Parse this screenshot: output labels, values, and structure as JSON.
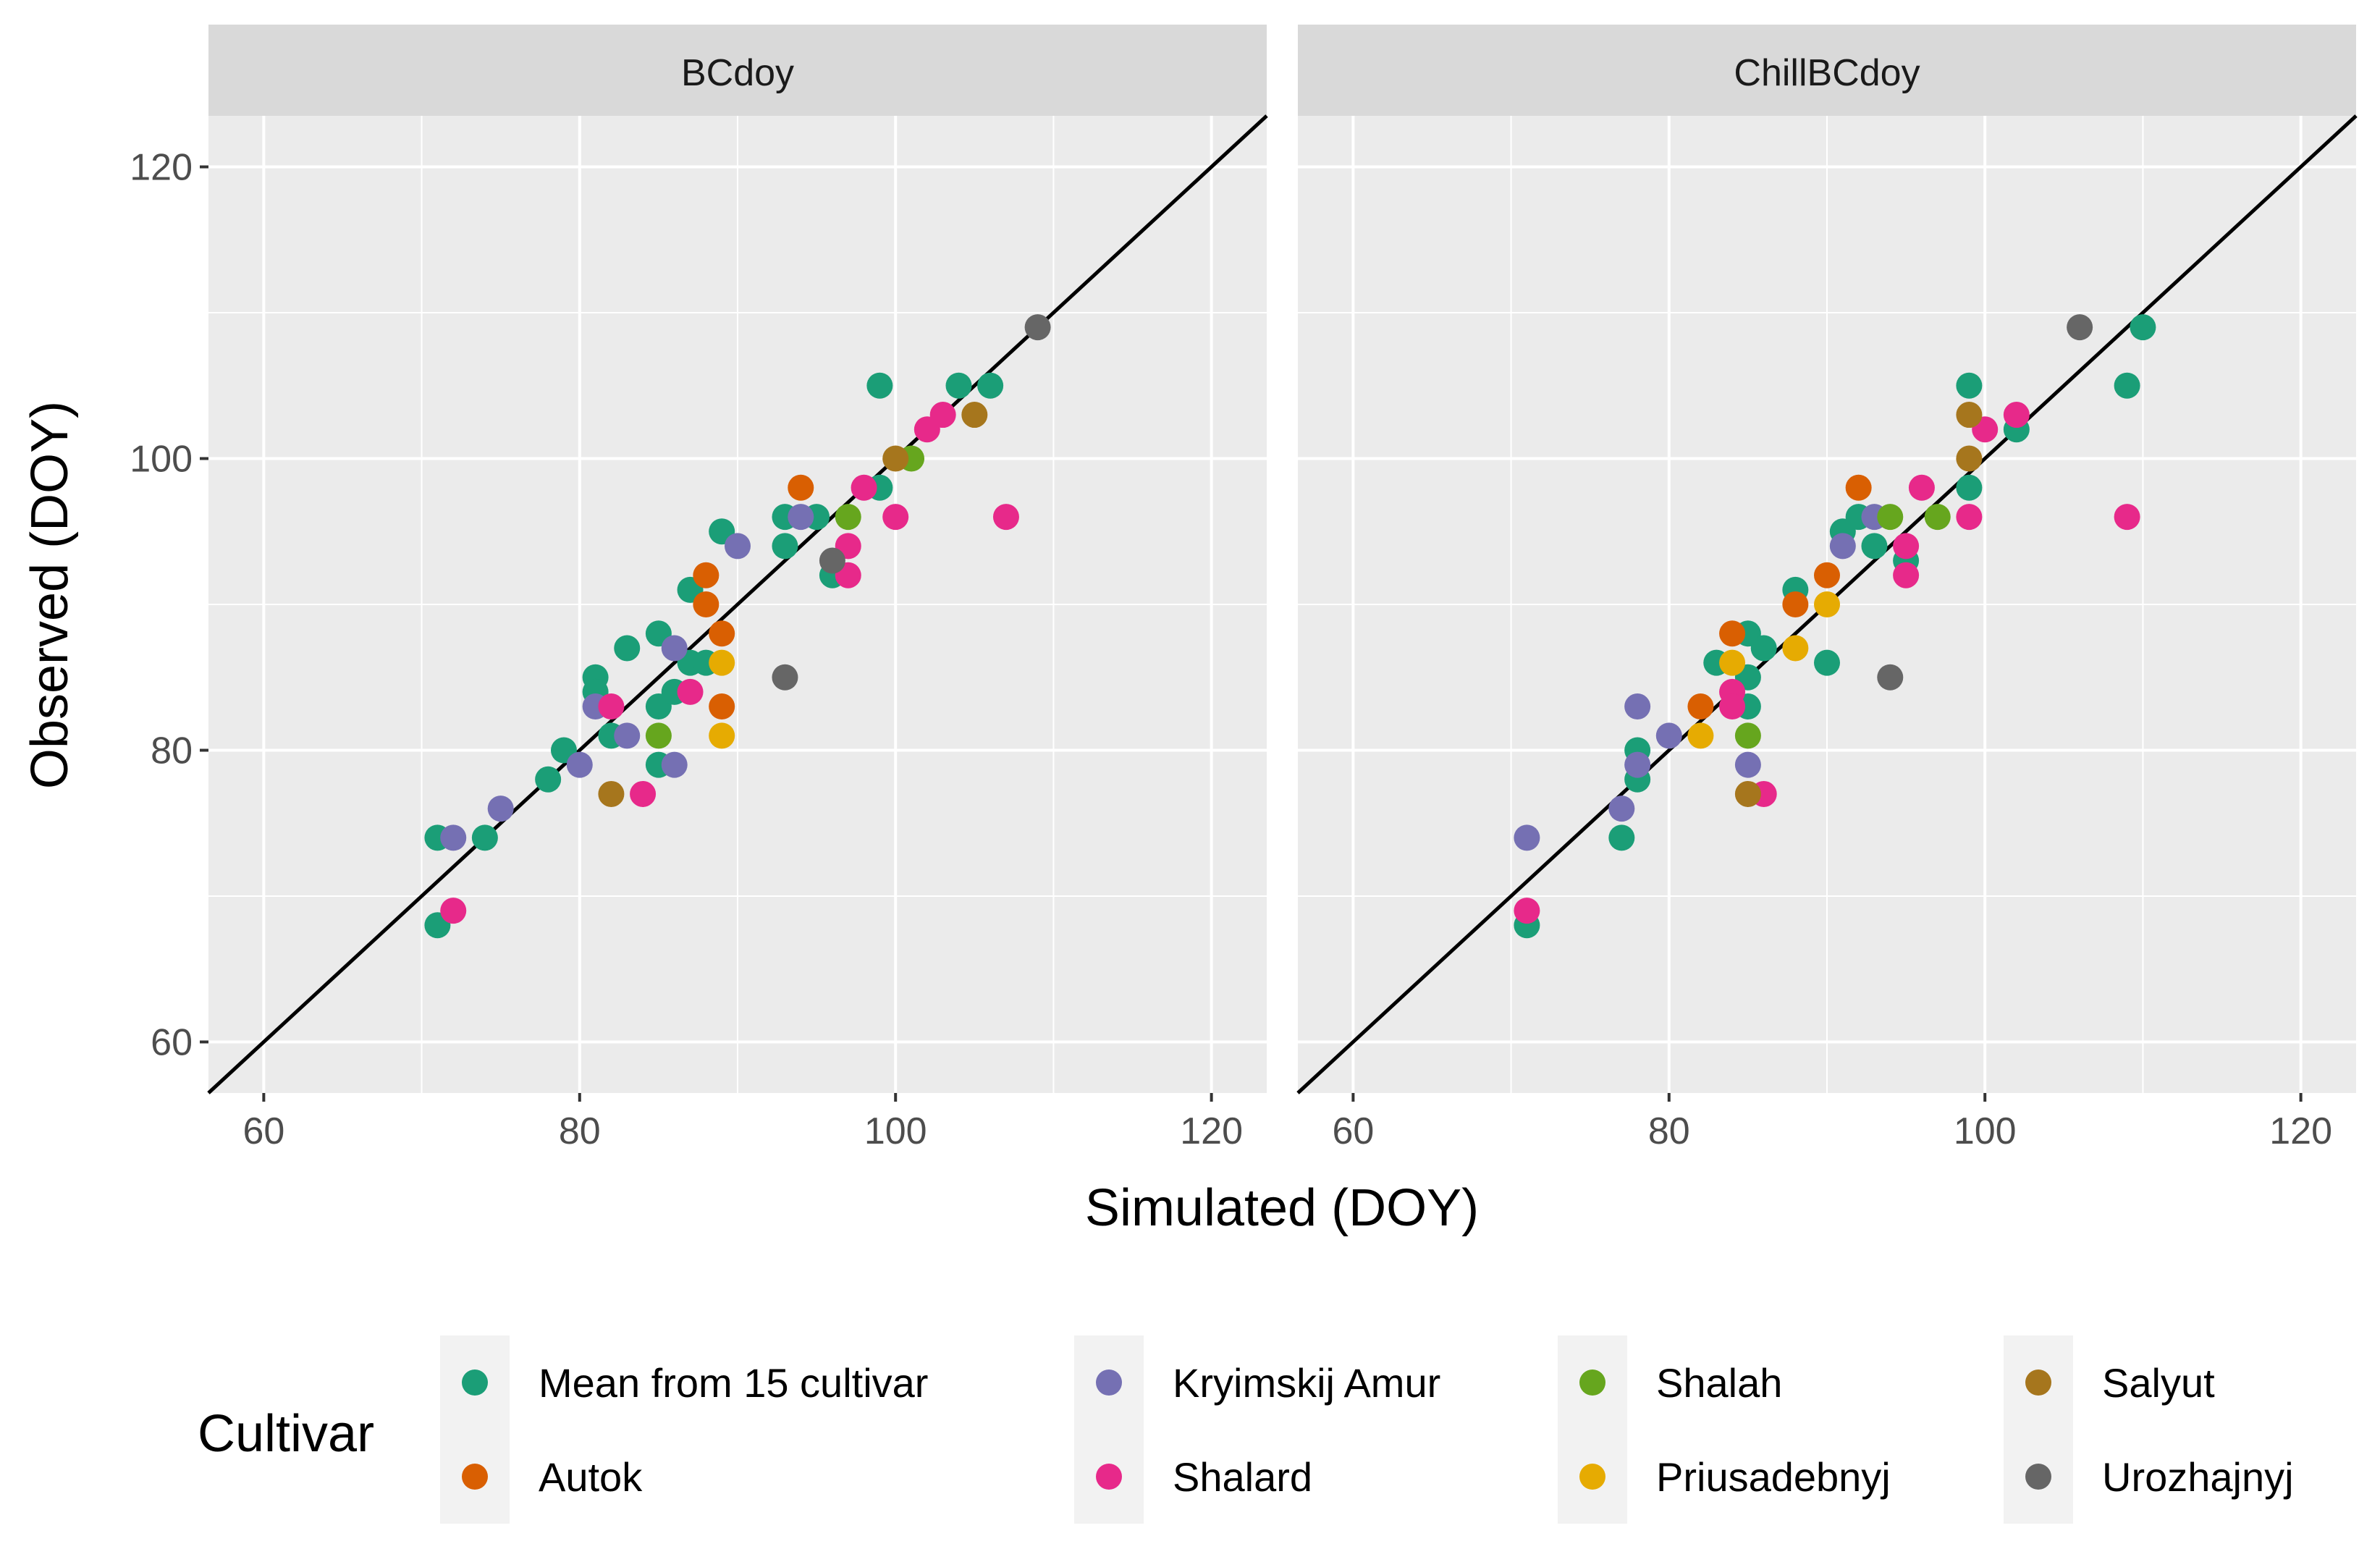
{
  "chart_data": {
    "type": "scatter",
    "xlabel": "Simulated (DOY)",
    "ylabel": "Observed (DOY)",
    "xlim": [
      56.5,
      123.5
    ],
    "ylim": [
      56.5,
      123.5
    ],
    "x_ticks": [
      60,
      80,
      100,
      120
    ],
    "y_ticks": [
      60,
      80,
      100,
      120
    ],
    "grid": true,
    "reference_line": "y = x",
    "legend": {
      "title": "Cultivar",
      "position": "bottom",
      "entries": [
        {
          "name": "Mean from 15 cultivar",
          "color": "#1b9e77"
        },
        {
          "name": "Autok",
          "color": "#d95f02"
        },
        {
          "name": "Kryimskij Amur",
          "color": "#7570b3"
        },
        {
          "name": "Shalard",
          "color": "#e7298a"
        },
        {
          "name": "Shalah",
          "color": "#66a61e"
        },
        {
          "name": "Priusadebnyj",
          "color": "#e6ab02"
        },
        {
          "name": "Salyut",
          "color": "#a6761d"
        },
        {
          "name": "Urozhajnyj",
          "color": "#666666"
        }
      ]
    },
    "panels": [
      {
        "title": "BCdoy",
        "series": [
          {
            "name": "Mean from 15 cultivar",
            "points": [
              [
                71,
                68
              ],
              [
                71,
                74
              ],
              [
                74,
                74
              ],
              [
                78,
                78
              ],
              [
                79,
                80
              ],
              [
                81,
                85
              ],
              [
                81,
                84
              ],
              [
                82,
                81
              ],
              [
                83,
                87
              ],
              [
                85,
                88
              ],
              [
                85,
                83
              ],
              [
                85,
                79
              ],
              [
                86,
                84
              ],
              [
                87,
                91
              ],
              [
                87,
                86
              ],
              [
                88,
                86
              ],
              [
                89,
                95
              ],
              [
                93,
                96
              ],
              [
                93,
                94
              ],
              [
                95,
                96
              ],
              [
                96,
                92
              ],
              [
                99,
                105
              ],
              [
                99,
                98
              ],
              [
                104,
                105
              ],
              [
                106,
                105
              ]
            ]
          },
          {
            "name": "Autok",
            "points": [
              [
                88,
                92
              ],
              [
                88,
                90
              ],
              [
                89,
                88
              ],
              [
                89,
                83
              ],
              [
                94,
                98
              ]
            ]
          },
          {
            "name": "Kryimskij Amur",
            "points": [
              [
                72,
                74
              ],
              [
                75,
                76
              ],
              [
                80,
                79
              ],
              [
                81,
                83
              ],
              [
                83,
                81
              ],
              [
                86,
                87
              ],
              [
                86,
                79
              ],
              [
                90,
                94
              ],
              [
                94,
                96
              ]
            ]
          },
          {
            "name": "Shalard",
            "points": [
              [
                72,
                69
              ],
              [
                82,
                83
              ],
              [
                84,
                77
              ],
              [
                87,
                84
              ],
              [
                97,
                94
              ],
              [
                97,
                92
              ],
              [
                98,
                98
              ],
              [
                100,
                96
              ],
              [
                102,
                102
              ],
              [
                103,
                103
              ],
              [
                107,
                96
              ]
            ]
          },
          {
            "name": "Shalah",
            "points": [
              [
                85,
                81
              ],
              [
                97,
                96
              ],
              [
                101,
                100
              ]
            ]
          },
          {
            "name": "Priusadebnyj",
            "points": [
              [
                89,
                86
              ],
              [
                89,
                81
              ]
            ]
          },
          {
            "name": "Salyut",
            "points": [
              [
                82,
                77
              ],
              [
                100,
                100
              ],
              [
                105,
                103
              ]
            ]
          },
          {
            "name": "Urozhajnyj",
            "points": [
              [
                93,
                85
              ],
              [
                96,
                93
              ],
              [
                109,
                109
              ]
            ]
          }
        ]
      },
      {
        "title": "ChillBCdoy",
        "series": [
          {
            "name": "Mean from 15 cultivar",
            "points": [
              [
                71,
                68
              ],
              [
                77,
                74
              ],
              [
                78,
                80
              ],
              [
                78,
                78
              ],
              [
                83,
                86
              ],
              [
                85,
                88
              ],
              [
                85,
                85
              ],
              [
                85,
                83
              ],
              [
                86,
                87
              ],
              [
                88,
                91
              ],
              [
                90,
                86
              ],
              [
                91,
                95
              ],
              [
                92,
                96
              ],
              [
                93,
                94
              ],
              [
                95,
                93
              ],
              [
                99,
                105
              ],
              [
                99,
                98
              ],
              [
                102,
                102
              ],
              [
                109,
                105
              ],
              [
                110,
                109
              ]
            ]
          },
          {
            "name": "Autok",
            "points": [
              [
                82,
                83
              ],
              [
                84,
                88
              ],
              [
                88,
                90
              ],
              [
                90,
                92
              ],
              [
                92,
                98
              ]
            ]
          },
          {
            "name": "Kryimskij Amur",
            "points": [
              [
                71,
                74
              ],
              [
                77,
                76
              ],
              [
                78,
                83
              ],
              [
                78,
                79
              ],
              [
                80,
                81
              ],
              [
                85,
                79
              ],
              [
                91,
                94
              ],
              [
                93,
                96
              ]
            ]
          },
          {
            "name": "Shalard",
            "points": [
              [
                71,
                69
              ],
              [
                84,
                84
              ],
              [
                84,
                83
              ],
              [
                86,
                77
              ],
              [
                95,
                94
              ],
              [
                95,
                92
              ],
              [
                96,
                98
              ],
              [
                99,
                96
              ],
              [
                100,
                102
              ],
              [
                102,
                103
              ],
              [
                109,
                96
              ]
            ]
          },
          {
            "name": "Shalah",
            "points": [
              [
                85,
                81
              ],
              [
                94,
                96
              ],
              [
                97,
                96
              ]
            ]
          },
          {
            "name": "Priusadebnyj",
            "points": [
              [
                82,
                81
              ],
              [
                84,
                86
              ],
              [
                88,
                87
              ],
              [
                90,
                90
              ]
            ]
          },
          {
            "name": "Salyut",
            "points": [
              [
                85,
                77
              ],
              [
                99,
                103
              ],
              [
                99,
                100
              ]
            ]
          },
          {
            "name": "Urozhajnyj",
            "points": [
              [
                94,
                85
              ],
              [
                106,
                109
              ]
            ]
          }
        ]
      }
    ]
  }
}
